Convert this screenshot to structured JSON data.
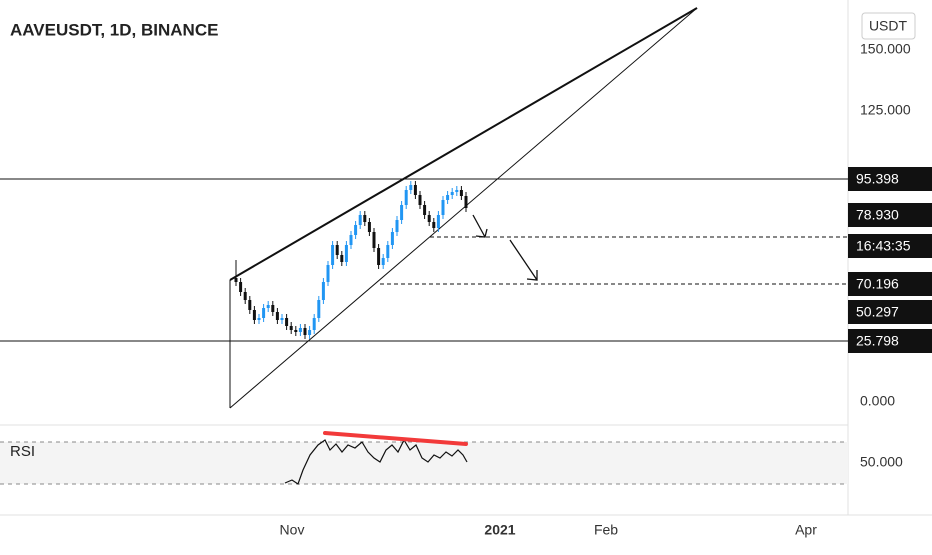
{
  "header": {
    "title": "AAVEUSDT, 1D, BINANCE",
    "currency": "USDT"
  },
  "price_axis": {
    "labels": [
      "150.000",
      "125.000",
      "0.000"
    ]
  },
  "price_tags": [
    "95.398",
    "78.930",
    "16:43:35",
    "70.196",
    "50.297",
    "25.798"
  ],
  "rsi": {
    "label": "RSI",
    "axis_label": "50.000"
  },
  "time_axis": {
    "labels": [
      "Nov",
      "2021",
      "Feb",
      "Apr"
    ]
  }
}
